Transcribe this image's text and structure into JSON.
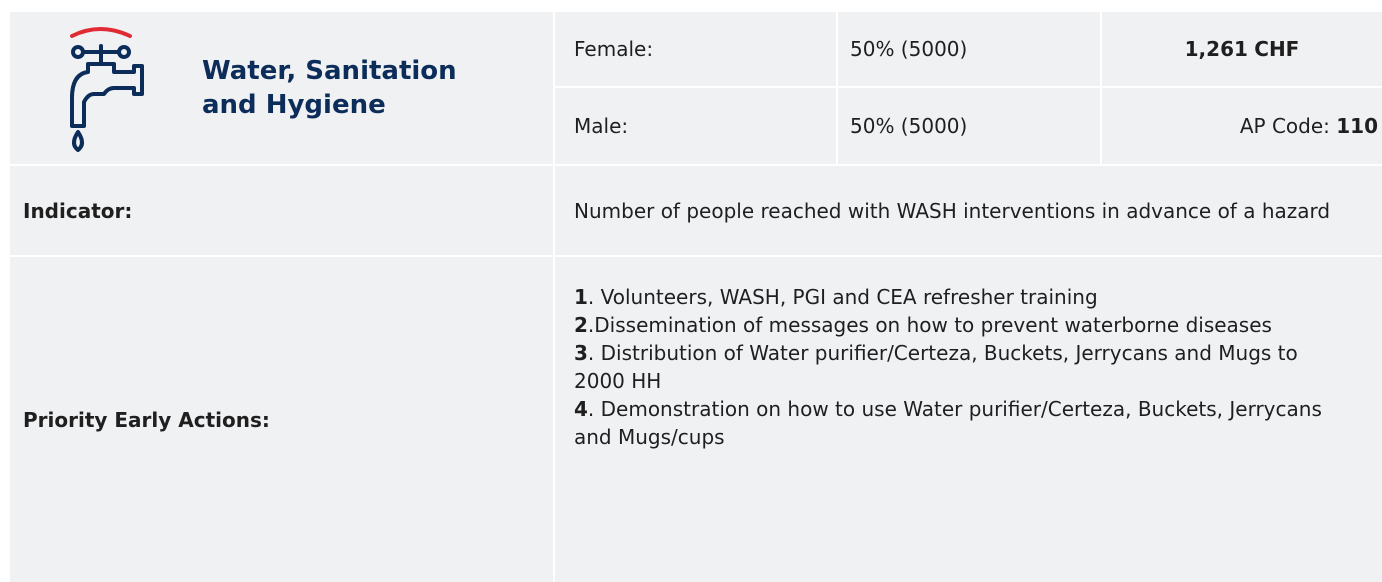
{
  "header": {
    "title": "Water, Sanitation and Hygiene"
  },
  "female": {
    "label": "Female:",
    "share": "50% (5000)",
    "amount": "1,261",
    "currency": "CHF"
  },
  "male": {
    "label": "Male:",
    "share": "50% (5000)",
    "code_label": "AP Code:",
    "code": "110"
  },
  "indicator": {
    "label": "Indicator:",
    "text": "Number of people reached with WASH interventions in advance of a hazard"
  },
  "actions": {
    "label": "Priority Early Actions:",
    "items": [
      {
        "number": "1",
        "text": ". Volunteers, WASH, PGI and CEA refresher training"
      },
      {
        "number": "2",
        "text": ".Dissemination of messages on how to prevent waterborne diseases"
      },
      {
        "number": "3",
        "text": ". Distribution of Water purifier/Certeza, Buckets, Jerrycans and Mugs to 2000 HH"
      },
      {
        "number": "4",
        "text": ". Demonstration on how to use Water purifier/Certeza, Buckets, Jerrycans and Mugs/cups"
      }
    ]
  }
}
